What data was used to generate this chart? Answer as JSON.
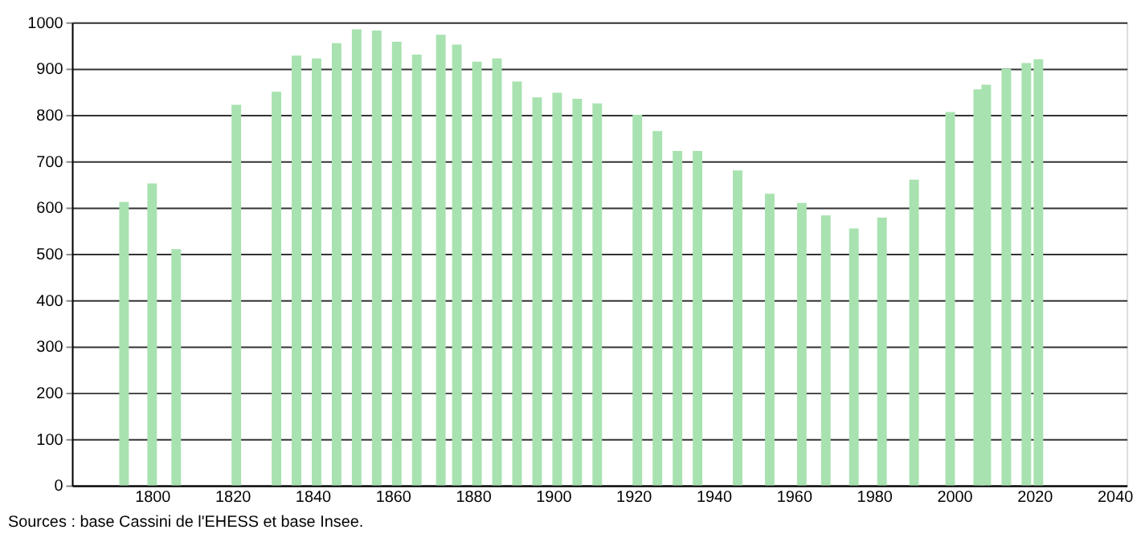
{
  "chart_data": {
    "type": "bar",
    "x": [
      1793,
      1800,
      1806,
      1821,
      1831,
      1836,
      1841,
      1846,
      1851,
      1856,
      1861,
      1866,
      1872,
      1876,
      1881,
      1886,
      1891,
      1896,
      1901,
      1906,
      1911,
      1921,
      1926,
      1931,
      1936,
      1946,
      1954,
      1962,
      1968,
      1975,
      1982,
      1990,
      1999,
      2006,
      2008,
      2013,
      2018,
      2021
    ],
    "values": [
      612,
      652,
      510,
      822,
      850,
      928,
      922,
      955,
      985,
      982,
      958,
      930,
      973,
      952,
      915,
      922,
      872,
      838,
      848,
      835,
      825,
      800,
      765,
      722,
      722,
      680,
      630,
      610,
      583,
      555,
      578,
      660,
      806,
      855,
      865,
      900,
      912,
      920
    ],
    "color": "#a8e2b0",
    "xlim": [
      1780,
      2043
    ],
    "xticks": [
      1800,
      1820,
      1840,
      1860,
      1880,
      1900,
      1920,
      1940,
      1960,
      1980,
      2000,
      2020,
      2040
    ],
    "ylim": [
      0,
      1000
    ],
    "yticks": [
      0,
      100,
      200,
      300,
      400,
      500,
      600,
      700,
      800,
      900,
      1000
    ],
    "grid": "y",
    "annotations": [
      "Sources : base Cassini de l'EHESS et base Insee."
    ]
  }
}
